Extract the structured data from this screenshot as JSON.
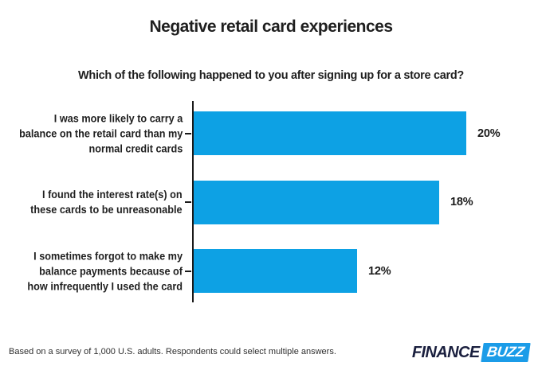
{
  "chart_data": {
    "type": "bar",
    "orientation": "horizontal",
    "title": "Negative retail card experiences",
    "subtitle": "Which of the following happened to you after signing up for a store card?",
    "categories": [
      "I was more likely to carry a\nbalance on the retail card than my\nnormal credit cards",
      "I found the interest rate(s) on\nthese cards to be unreasonable",
      "I sometimes forgot to make my\nbalance payments because of\nhow infrequently I used the card"
    ],
    "values": [
      20,
      18,
      12
    ],
    "value_labels": [
      "20%",
      "18%",
      "12%"
    ],
    "unit": "%",
    "xlim": [
      0,
      25
    ],
    "grid": false,
    "legend": false,
    "bar_color": "#0da1e4",
    "axis_color": "#1a1a1a"
  },
  "footer": {
    "note": "Based on a survey of 1,000 U.S. adults. Respondents could select multiple answers.",
    "logo": {
      "part1": "FINANCE",
      "part2": "BUZZ",
      "navy_color": "#1a1f3e",
      "blue_color": "#1b9ce8"
    }
  }
}
